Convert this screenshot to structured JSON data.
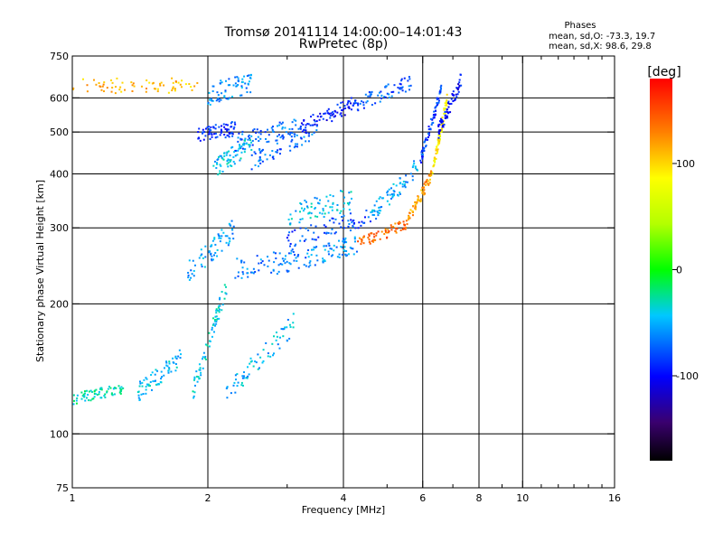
{
  "chart_data": {
    "type": "scatter",
    "title": "Tromsø 20141114 14:00:00–14:01:43",
    "subtitle": "RwPretec (8p)",
    "xlabel": "Frequency [MHz]",
    "ylabel": "Stationary phase Virtual Height [km]",
    "x_scale": "log",
    "y_scale": "log",
    "xlim": [
      1,
      16
    ],
    "ylim": [
      75,
      750
    ],
    "x_ticks": [
      1,
      2,
      4,
      6,
      8,
      10,
      16
    ],
    "x_tick_labels": [
      "1",
      "2",
      "4",
      "6",
      "8",
      "10",
      "16"
    ],
    "x_minor_ticks": [
      3,
      5,
      7,
      9,
      11,
      12,
      13,
      14,
      15
    ],
    "y_ticks": [
      75,
      100,
      200,
      300,
      400,
      500,
      600,
      750
    ],
    "y_tick_labels": [
      "75",
      "100",
      "200",
      "300",
      "400",
      "500",
      "600",
      "750"
    ],
    "grid_x": [
      2,
      4,
      6,
      8,
      10
    ],
    "grid_y": [
      100,
      200,
      300,
      400,
      500,
      600
    ],
    "grid": true,
    "stats": {
      "heading": "Phases",
      "line1": "mean, sd,O: -73.3, 19.7",
      "line2": "mean, sd,X:  98.6, 29.8"
    },
    "colorbar": {
      "label": "[deg]",
      "min": -180,
      "max": 180,
      "ticks": [
        100,
        0,
        -100
      ],
      "tick_labels": [
        "100",
        "0",
        "-100"
      ],
      "colormap": "rainbow"
    },
    "traces": [
      {
        "x": [
          1.0,
          1.9
        ],
        "y": [
          640,
          640
        ],
        "phase": 110,
        "spread": 0.04
      },
      {
        "x": [
          2.0,
          2.5
        ],
        "y": [
          610,
          655
        ],
        "phase": -60,
        "spread": 0.06
      },
      {
        "x": [
          1.9,
          2.3
        ],
        "y": [
          490,
          510
        ],
        "phase": -90,
        "spread": 0.04
      },
      {
        "x": [
          2.3,
          3.2
        ],
        "y": [
          475,
          520
        ],
        "phase": -70,
        "spread": 0.05
      },
      {
        "x": [
          3.2,
          4.2
        ],
        "y": [
          510,
          580
        ],
        "phase": -95,
        "spread": 0.04
      },
      {
        "x": [
          4.2,
          5.7
        ],
        "y": [
          575,
          655
        ],
        "phase": -75,
        "spread": 0.04
      },
      {
        "x": [
          2.05,
          2.5
        ],
        "y": [
          410,
          470
        ],
        "phase": -45,
        "spread": 0.05
      },
      {
        "x": [
          2.5,
          3.5
        ],
        "y": [
          430,
          510
        ],
        "phase": -70,
        "spread": 0.05
      },
      {
        "x": [
          1.8,
          2.3
        ],
        "y": [
          235,
          300
        ],
        "phase": -55,
        "spread": 0.06
      },
      {
        "x": [
          2.3,
          3.3
        ],
        "y": [
          240,
          255
        ],
        "phase": -65,
        "spread": 0.06
      },
      {
        "x": [
          3.3,
          4.3
        ],
        "y": [
          255,
          275
        ],
        "phase": -60,
        "spread": 0.05
      },
      {
        "x": [
          4.3,
          5.5
        ],
        "y": [
          275,
          305
        ],
        "phase": 140,
        "spread": 0.03
      },
      {
        "x": [
          5.5,
          6.3
        ],
        "y": [
          305,
          400
        ],
        "phase": 120,
        "spread": 0.03
      },
      {
        "x": [
          6.3,
          6.8
        ],
        "y": [
          400,
          600
        ],
        "phase": 90,
        "spread": 0.03
      },
      {
        "x": [
          3.0,
          4.6
        ],
        "y": [
          280,
          320
        ],
        "phase": -80,
        "spread": 0.05
      },
      {
        "x": [
          4.6,
          5.9
        ],
        "y": [
          320,
          420
        ],
        "phase": -55,
        "spread": 0.05
      },
      {
        "x": [
          5.9,
          6.6
        ],
        "y": [
          420,
          630
        ],
        "phase": -85,
        "spread": 0.03
      },
      {
        "x": [
          3.0,
          4.2
        ],
        "y": [
          320,
          350
        ],
        "phase": -45,
        "spread": 0.06
      },
      {
        "x": [
          1.85,
          2.2
        ],
        "y": [
          125,
          220
        ],
        "phase": -40,
        "spread": 0.05
      },
      {
        "x": [
          2.2,
          3.1
        ],
        "y": [
          125,
          180
        ],
        "phase": -50,
        "spread": 0.06
      },
      {
        "x": [
          1.4,
          1.75
        ],
        "y": [
          125,
          150
        ],
        "phase": -45,
        "spread": 0.05
      },
      {
        "x": [
          1.0,
          1.3
        ],
        "y": [
          120,
          128
        ],
        "phase": -30,
        "spread": 0.03
      },
      {
        "x": [
          6.5,
          7.3
        ],
        "y": [
          500,
          660
        ],
        "phase": -100,
        "spread": 0.04
      }
    ]
  }
}
